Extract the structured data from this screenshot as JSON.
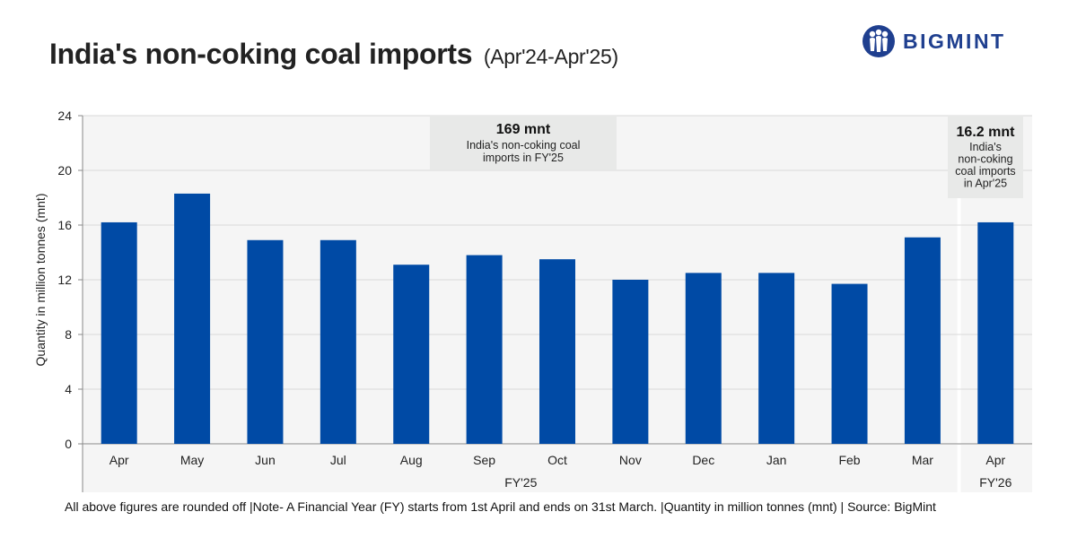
{
  "header": {
    "title": "India's non-coking coal imports",
    "subtitle": "(Apr'24-Apr'25)",
    "brand": "BIGMINT"
  },
  "footer": {
    "note": "All above figures are rounded off |Note- A Financial Year (FY) starts from 1st April and ends on 31st March. |Quantity in million tonnes (mnt) | Source: BigMint"
  },
  "colors": {
    "bar": "#004aa5",
    "plot_bg": "#f5f5f5",
    "annotation_bg": "#e8e9e8",
    "brand": "#1f3f8f"
  },
  "chart_data": {
    "type": "bar",
    "title": "India's non-coking coal imports",
    "ylabel": "Quantity in million tonnes (mnt)",
    "xlabel": "",
    "ylim": [
      0,
      24
    ],
    "yticks": [
      0,
      4,
      8,
      12,
      16,
      20,
      24
    ],
    "grid": true,
    "categories": [
      "Apr",
      "May",
      "Jun",
      "Jul",
      "Aug",
      "Sep",
      "Oct",
      "Nov",
      "Dec",
      "Jan",
      "Feb",
      "Mar",
      "Apr"
    ],
    "values": [
      16.2,
      18.3,
      14.9,
      14.9,
      13.1,
      13.8,
      13.5,
      12.0,
      12.5,
      12.5,
      11.7,
      15.1,
      16.2
    ],
    "groups": [
      {
        "label": "FY'25",
        "start": 0,
        "end": 11
      },
      {
        "label": "FY'26",
        "start": 12,
        "end": 12
      }
    ],
    "annotations": [
      {
        "headline": "169 mnt",
        "lines": [
          "India's non-coking coal",
          "imports in FY'25"
        ]
      },
      {
        "headline": "16.2 mnt",
        "lines": [
          "India's",
          "non-coking",
          "coal imports",
          "in Apr'25"
        ]
      }
    ]
  }
}
